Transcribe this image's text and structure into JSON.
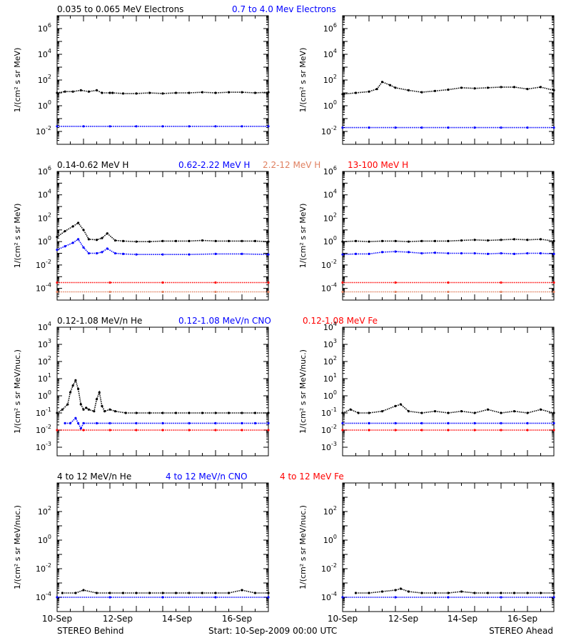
{
  "footer": {
    "left": "STEREO Behind",
    "center": "Start: 10-Sep-2009 00:00 UTC",
    "right": "STEREO Ahead"
  },
  "x_axis": {
    "range_days": [
      0,
      8
    ],
    "tick_labels": [
      {
        "day": 0,
        "label": "10-Sep"
      },
      {
        "day": 2,
        "label": "12-Sep"
      },
      {
        "day": 4,
        "label": "14-Sep"
      },
      {
        "day": 6,
        "label": "16-Sep"
      }
    ]
  },
  "colors": {
    "black": "#000000",
    "blue": "#0000ff",
    "salmon": "#e08060",
    "red": "#ff0000"
  },
  "chart_data": [
    {
      "id": "electrons",
      "type": "scatter",
      "scale": "log",
      "ylabel": "1/(cm² s sr MeV)",
      "ylim_exp": [
        -3,
        7
      ],
      "y_tick_exps": [
        -2,
        0,
        2,
        4,
        6
      ],
      "legend": [
        {
          "text": "0.035 to 0.065 MeV Electrons",
          "color": "#000000"
        },
        {
          "text": "0.7 to 4.0 Mev Electrons",
          "color": "#0000ff"
        }
      ],
      "panels": [
        {
          "side": "STEREO Behind",
          "series": [
            {
              "color": "#000000",
              "x": [
                0,
                0.3,
                0.6,
                0.9,
                1.2,
                1.5,
                1.7,
                2.0,
                2.1,
                2.5,
                3,
                3.5,
                4,
                4.5,
                5,
                5.5,
                6,
                6.5,
                7,
                7.5,
                8
              ],
              "log10_y": [
                1.0,
                1.1,
                1.1,
                1.2,
                1.1,
                1.2,
                1.0,
                1.0,
                1.0,
                0.95,
                0.95,
                1.0,
                0.95,
                1.0,
                1.0,
                1.05,
                1.0,
                1.05,
                1.05,
                1.0,
                1.05
              ]
            },
            {
              "color": "#0000ff",
              "x": [
                0,
                1,
                2,
                3,
                4,
                5,
                6,
                7,
                8
              ],
              "log10_y": [
                -1.6,
                -1.6,
                -1.6,
                -1.6,
                -1.6,
                -1.6,
                -1.6,
                -1.6,
                -1.6
              ]
            }
          ]
        },
        {
          "side": "STEREO Ahead",
          "series": [
            {
              "color": "#000000",
              "x": [
                0,
                0.5,
                1.0,
                1.3,
                1.5,
                1.8,
                2.0,
                2.5,
                3,
                3.5,
                4,
                4.5,
                5,
                5.5,
                6,
                6.5,
                7,
                7.5,
                8
              ],
              "log10_y": [
                0.9,
                1.0,
                1.1,
                1.3,
                1.85,
                1.6,
                1.4,
                1.2,
                1.05,
                1.15,
                1.25,
                1.4,
                1.35,
                1.4,
                1.45,
                1.45,
                1.3,
                1.45,
                1.2
              ]
            },
            {
              "color": "#0000ff",
              "x": [
                0,
                1,
                2,
                3,
                4,
                5,
                6,
                7,
                8
              ],
              "log10_y": [
                -1.7,
                -1.7,
                -1.7,
                -1.7,
                -1.7,
                -1.7,
                -1.7,
                -1.7,
                -1.7
              ]
            }
          ]
        }
      ]
    },
    {
      "id": "protons",
      "type": "scatter",
      "scale": "log",
      "ylabel": "1/(cm² s sr MeV)",
      "ylim_exp": [
        -5,
        6
      ],
      "y_tick_exps": [
        -4,
        -2,
        0,
        2,
        4,
        6
      ],
      "legend": [
        {
          "text": "0.14-0.62 MeV H",
          "color": "#000000"
        },
        {
          "text": "0.62-2.22 MeV H",
          "color": "#0000ff"
        },
        {
          "text": "2.2-12 MeV H",
          "color": "#e08060"
        },
        {
          "text": "13-100 MeV H",
          "color": "#ff0000"
        }
      ],
      "panels": [
        {
          "side": "STEREO Behind",
          "series": [
            {
              "color": "#000000",
              "x": [
                0,
                0.3,
                0.6,
                0.8,
                1.0,
                1.2,
                1.5,
                1.7,
                1.9,
                2.2,
                2.5,
                3,
                3.5,
                4,
                4.5,
                5,
                5.5,
                6,
                6.5,
                7,
                7.5,
                8
              ],
              "log10_y": [
                0.4,
                0.9,
                1.3,
                1.6,
                1.0,
                0.2,
                0.15,
                0.3,
                0.7,
                0.1,
                0.05,
                0.0,
                0.0,
                0.05,
                0.05,
                0.05,
                0.1,
                0.05,
                0.05,
                0.05,
                0.05,
                0.0
              ]
            },
            {
              "color": "#0000ff",
              "x": [
                0,
                0.3,
                0.6,
                0.8,
                1.0,
                1.2,
                1.5,
                1.7,
                1.9,
                2.2,
                2.5,
                3,
                4,
                5,
                6,
                7,
                8
              ],
              "log10_y": [
                -0.7,
                -0.4,
                -0.1,
                0.2,
                -0.5,
                -1.0,
                -1.0,
                -0.9,
                -0.6,
                -1.0,
                -1.05,
                -1.1,
                -1.1,
                -1.1,
                -1.05,
                -1.05,
                -1.1
              ]
            },
            {
              "color": "#e08060",
              "x": [
                0,
                2,
                4,
                6,
                8
              ],
              "log10_y": [
                -4.3,
                -4.3,
                -4.3,
                -4.3,
                -4.3
              ]
            },
            {
              "color": "#ff0000",
              "x": [
                0,
                2,
                4,
                6,
                8
              ],
              "log10_y": [
                -3.5,
                -3.5,
                -3.5,
                -3.5,
                -3.5
              ]
            }
          ]
        },
        {
          "side": "STEREO Ahead",
          "series": [
            {
              "color": "#000000",
              "x": [
                0,
                0.5,
                1,
                1.5,
                2,
                2.5,
                3,
                3.5,
                4,
                4.5,
                5,
                5.5,
                6,
                6.5,
                7,
                7.5,
                8
              ],
              "log10_y": [
                0.0,
                0.05,
                0.0,
                0.05,
                0.05,
                0.0,
                0.05,
                0.05,
                0.05,
                0.1,
                0.15,
                0.1,
                0.15,
                0.2,
                0.15,
                0.2,
                0.05
              ]
            },
            {
              "color": "#0000ff",
              "x": [
                0,
                0.5,
                1,
                1.5,
                2,
                2.5,
                3,
                3.5,
                4,
                4.5,
                5,
                5.5,
                6,
                6.5,
                7,
                7.5,
                8
              ],
              "log10_y": [
                -1.1,
                -1.05,
                -1.05,
                -0.9,
                -0.85,
                -0.9,
                -1.0,
                -0.95,
                -1.0,
                -1.0,
                -1.0,
                -1.05,
                -1.0,
                -1.05,
                -1.0,
                -1.0,
                -1.05
              ]
            },
            {
              "color": "#e08060",
              "x": [
                0,
                2,
                4,
                6,
                8
              ],
              "log10_y": [
                -4.3,
                -4.3,
                -4.3,
                -4.3,
                -4.3
              ]
            },
            {
              "color": "#ff0000",
              "x": [
                0,
                2,
                4,
                6,
                8
              ],
              "log10_y": [
                -3.5,
                -3.5,
                -3.5,
                -3.5,
                -3.5
              ]
            }
          ]
        }
      ]
    },
    {
      "id": "heavy-low",
      "type": "scatter",
      "scale": "log",
      "ylabel": "1/(cm² s sr MeV/nuc.)",
      "ylim_exp": [
        -3.5,
        4
      ],
      "y_tick_exps": [
        -3,
        -2,
        -1,
        0,
        1,
        2,
        3,
        4
      ],
      "legend": [
        {
          "text": "0.12-1.08 MeV/n He",
          "color": "#000000"
        },
        {
          "text": "0.12-1.08 MeV/n CNO",
          "color": "#0000ff"
        },
        {
          "text": "0.12-1.08 MeV Fe",
          "color": "#ff0000"
        }
      ],
      "panels": [
        {
          "side": "STEREO Behind",
          "series": [
            {
              "color": "#000000",
              "x": [
                0,
                0.2,
                0.4,
                0.5,
                0.6,
                0.7,
                0.8,
                0.9,
                1.0,
                1.1,
                1.2,
                1.4,
                1.5,
                1.6,
                1.7,
                1.8,
                2.0,
                2.2,
                2.6,
                3,
                3.5,
                4,
                4.5,
                5,
                5.5,
                6,
                6.5,
                7,
                7.5,
                8
              ],
              "log10_y": [
                -1,
                -0.8,
                -0.5,
                0.2,
                0.6,
                0.9,
                0.4,
                -0.5,
                -0.8,
                -0.7,
                -0.8,
                -0.9,
                -0.2,
                0.2,
                -0.6,
                -0.9,
                -0.8,
                -0.9,
                -1,
                -1,
                -1,
                -1,
                -1,
                -1,
                -1,
                -1,
                -1,
                -1,
                -1,
                -1
              ]
            },
            {
              "color": "#0000ff",
              "x": [
                0.3,
                0.5,
                0.7,
                0.8,
                0.9,
                1.0,
                1.5,
                2.0,
                3,
                4,
                5,
                6,
                7,
                7.5,
                8
              ],
              "log10_y": [
                -1.6,
                -1.6,
                -1.3,
                -1.6,
                -1.9,
                -1.6,
                -1.6,
                -1.6,
                -1.6,
                -1.6,
                -1.6,
                -1.6,
                -1.6,
                -1.6,
                -1.6
              ]
            },
            {
              "color": "#ff0000",
              "x": [
                0,
                1,
                2,
                3,
                4,
                5,
                6,
                7,
                8
              ],
              "log10_y": [
                -2,
                -2,
                -2,
                -2,
                -2,
                -2,
                -2,
                -2,
                -2
              ]
            }
          ]
        },
        {
          "side": "STEREO Ahead",
          "series": [
            {
              "color": "#000000",
              "x": [
                0,
                0.3,
                0.6,
                1,
                1.5,
                2.0,
                2.2,
                2.5,
                3,
                3.5,
                4,
                4.5,
                5,
                5.5,
                6,
                6.5,
                7,
                7.5,
                8
              ],
              "log10_y": [
                -1,
                -0.8,
                -1,
                -1,
                -0.9,
                -0.6,
                -0.5,
                -0.9,
                -1,
                -0.9,
                -1,
                -0.9,
                -1,
                -0.8,
                -1,
                -0.9,
                -1,
                -0.8,
                -1
              ]
            },
            {
              "color": "#0000ff",
              "x": [
                0,
                1,
                2,
                3,
                4,
                5,
                6,
                7,
                8
              ],
              "log10_y": [
                -1.6,
                -1.6,
                -1.6,
                -1.6,
                -1.6,
                -1.6,
                -1.6,
                -1.6,
                -1.6
              ]
            },
            {
              "color": "#ff0000",
              "x": [
                0,
                1,
                2,
                3,
                4,
                5,
                6,
                7,
                8
              ],
              "log10_y": [
                -2,
                -2,
                -2,
                -2,
                -2,
                -2,
                -2,
                -2,
                -2
              ]
            }
          ]
        }
      ]
    },
    {
      "id": "heavy-high",
      "type": "scatter",
      "scale": "log",
      "ylabel": "1/(cm² s sr MeV/nuc.)",
      "ylim_exp": [
        -5,
        4
      ],
      "y_tick_exps": [
        -4,
        -2,
        0,
        2
      ],
      "legend": [
        {
          "text": "4 to 12 MeV/n He",
          "color": "#000000"
        },
        {
          "text": "4 to 12 MeV/n CNO",
          "color": "#0000ff"
        },
        {
          "text": "4 to 12 MeV Fe",
          "color": "#ff0000"
        }
      ],
      "panels": [
        {
          "side": "STEREO Behind",
          "series": [
            {
              "color": "#000000",
              "x": [
                0.2,
                0.7,
                1.0,
                1.5,
                2.0,
                2.5,
                3.0,
                3.5,
                4,
                4.5,
                5,
                5.5,
                6,
                6.5,
                7,
                7.5,
                8
              ],
              "log10_y": [
                -3.7,
                -3.7,
                -3.5,
                -3.7,
                -3.7,
                -3.7,
                -3.7,
                -3.7,
                -3.7,
                -3.7,
                -3.7,
                -3.7,
                -3.7,
                -3.7,
                -3.5,
                -3.7,
                -3.7
              ]
            },
            {
              "color": "#0000ff",
              "x": [
                0,
                2,
                4,
                6,
                8
              ],
              "log10_y": [
                -4,
                -4,
                -4,
                -4,
                -4
              ]
            }
          ]
        },
        {
          "side": "STEREO Ahead",
          "series": [
            {
              "color": "#000000",
              "x": [
                0.5,
                1.0,
                1.5,
                2.0,
                2.2,
                2.5,
                3.0,
                3.5,
                4,
                4.5,
                5,
                5.5,
                6,
                6.5,
                7,
                7.5,
                8
              ],
              "log10_y": [
                -3.7,
                -3.7,
                -3.6,
                -3.5,
                -3.4,
                -3.6,
                -3.7,
                -3.7,
                -3.7,
                -3.6,
                -3.7,
                -3.7,
                -3.7,
                -3.7,
                -3.7,
                -3.7,
                -3.7
              ]
            },
            {
              "color": "#0000ff",
              "x": [
                0,
                2,
                4,
                6,
                8
              ],
              "log10_y": [
                -4,
                -4,
                -4,
                -4,
                -4
              ]
            }
          ]
        }
      ]
    }
  ]
}
